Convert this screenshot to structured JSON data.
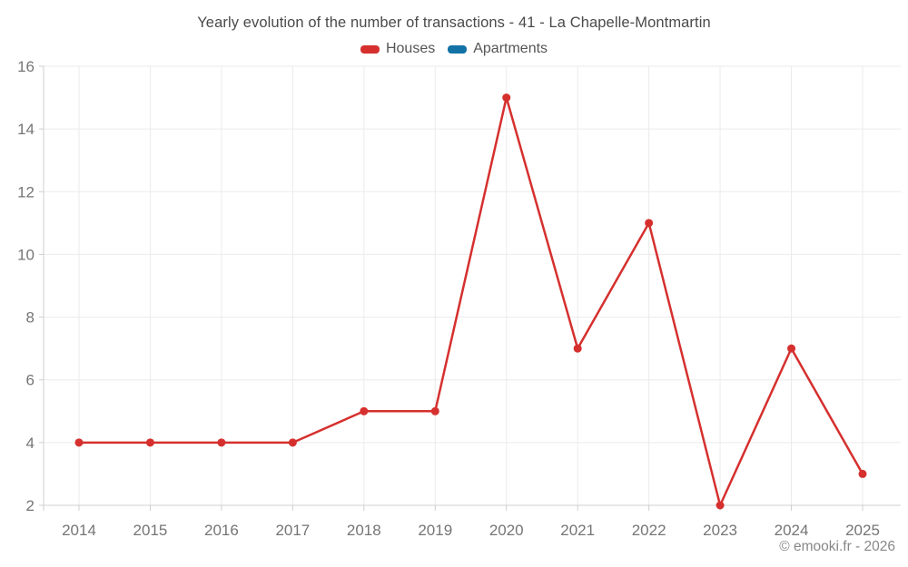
{
  "title": "Yearly evolution of the number of transactions - 41 - La Chapelle-Montmartin",
  "footer": "© emooki.fr - 2026",
  "legend": [
    {
      "label": "Houses",
      "color": "#d5302e"
    },
    {
      "label": "Apartments",
      "color": "#1272a5"
    }
  ],
  "colors": {
    "houses": "#d5302e",
    "apartments": "#1272a5",
    "gridline": "#ebebeb",
    "axis": "#cfcfcf",
    "tick_label": "#757575",
    "title_text": "#4a4a4a",
    "background": "#ffffff"
  },
  "chart_data": {
    "type": "line",
    "title": "Yearly evolution of the number of transactions - 41 - La Chapelle-Montmartin",
    "x": [
      2014,
      2015,
      2016,
      2017,
      2018,
      2019,
      2020,
      2021,
      2022,
      2023,
      2024,
      2025
    ],
    "series": [
      {
        "name": "Houses",
        "color": "#d5302e",
        "values": [
          4,
          4,
          4,
          4,
          5,
          5,
          15,
          7,
          11,
          2,
          7,
          3
        ]
      },
      {
        "name": "Apartments",
        "color": "#1272a5",
        "values": []
      }
    ],
    "xlabel": "",
    "ylabel": "",
    "ylim": [
      2,
      16
    ],
    "yticks": [
      2,
      4,
      6,
      8,
      10,
      12,
      14,
      16
    ],
    "grid": true,
    "legend_position": "top",
    "markers": true
  }
}
